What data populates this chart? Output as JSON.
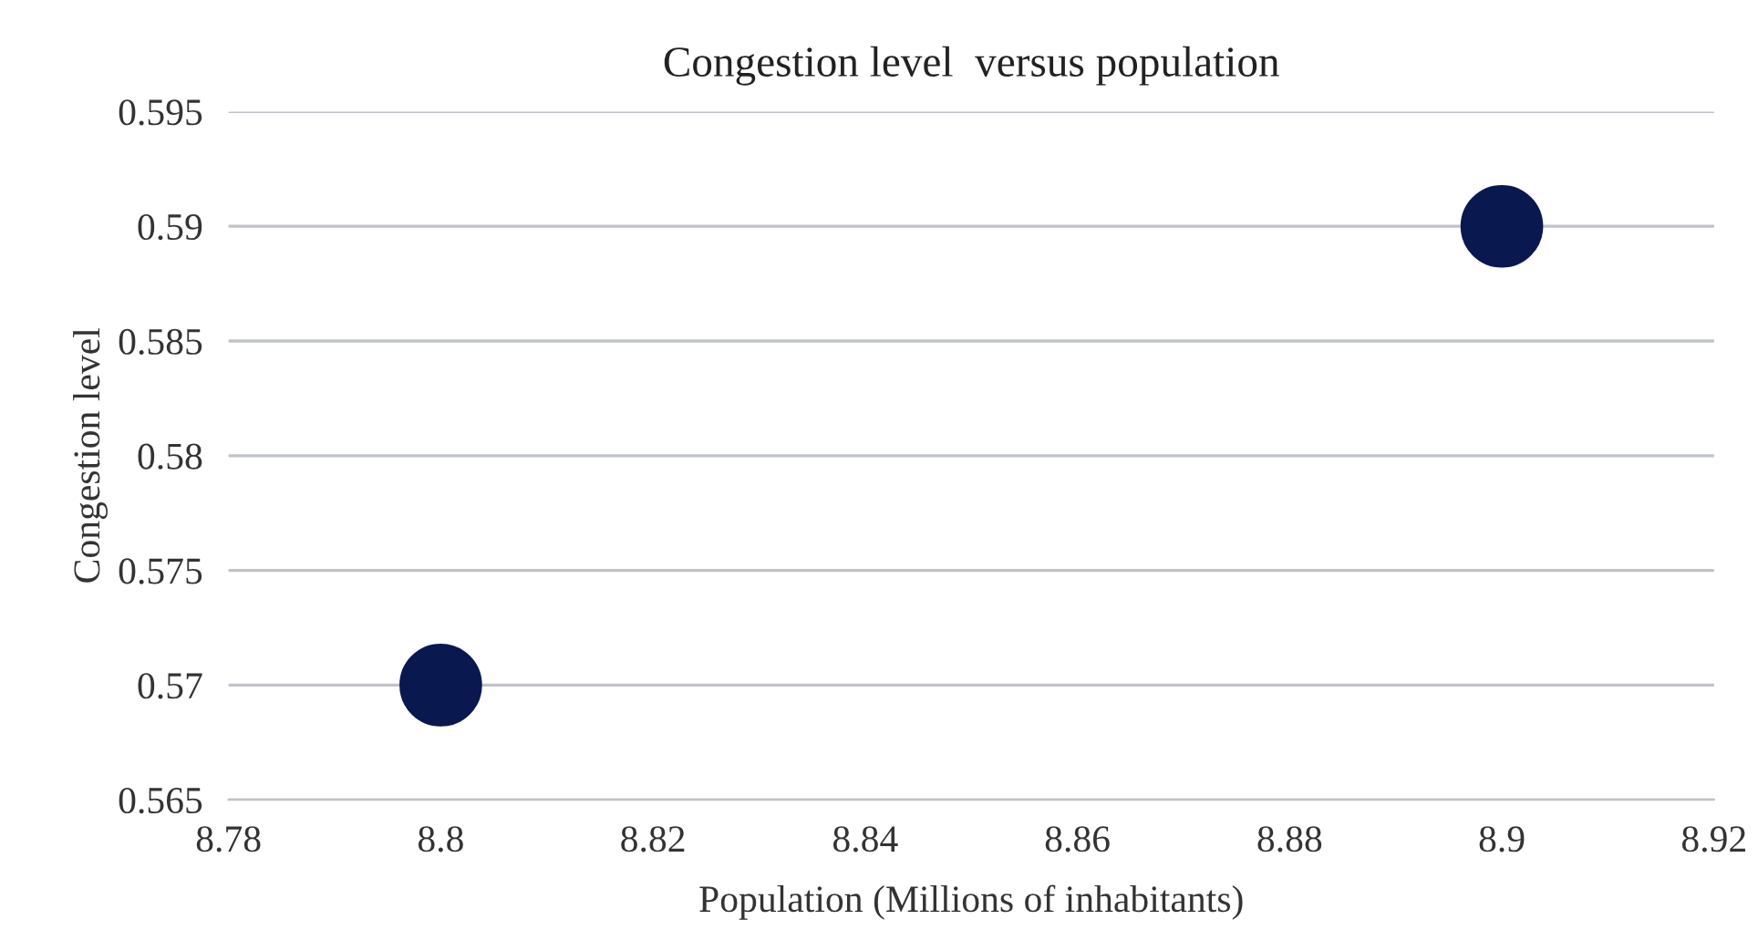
{
  "chart_data": {
    "type": "scatter",
    "title": "Congestion level  versus population",
    "xlabel": "Population (Millions of inhabitants)",
    "ylabel": "Congestion level",
    "series": [
      {
        "color": "#0a1850",
        "x": [
          8.8,
          8.9
        ],
        "values": [
          0.57,
          0.59
        ]
      }
    ],
    "xlim": [
      8.78,
      8.92
    ],
    "xticks": [
      8.78,
      8.8,
      8.82,
      8.84,
      8.86,
      8.88,
      8.9,
      8.92
    ],
    "ylim": [
      0.565,
      0.595
    ],
    "yticks": [
      0.565,
      0.57,
      0.575,
      0.58,
      0.585,
      0.59,
      0.595
    ],
    "grid": "y",
    "marker": "circle"
  }
}
